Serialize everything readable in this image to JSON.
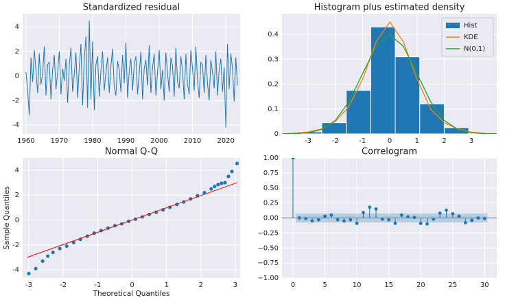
{
  "chart_data": [
    {
      "type": "line",
      "title": "Standardized residual",
      "x": [
        1960,
        1960.5,
        1961,
        1961.5,
        1962,
        1962.5,
        1963,
        1963.5,
        1964,
        1964.5,
        1965,
        1965.5,
        1966,
        1966.5,
        1967,
        1967.5,
        1968,
        1968.5,
        1969,
        1969.5,
        1970,
        1970.5,
        1971,
        1971.5,
        1972,
        1972.5,
        1973,
        1973.5,
        1974,
        1974.5,
        1975,
        1975.5,
        1976,
        1976.5,
        1977,
        1977.5,
        1978,
        1978.5,
        1979,
        1979.5,
        1980,
        1980.5,
        1981,
        1981.5,
        1982,
        1982.5,
        1983,
        1983.5,
        1984,
        1984.5,
        1985,
        1985.5,
        1986,
        1986.5,
        1987,
        1987.5,
        1988,
        1988.5,
        1989,
        1989.5,
        1990,
        1990.5,
        1991,
        1991.5,
        1992,
        1992.5,
        1993,
        1993.5,
        1994,
        1994.5,
        1995,
        1995.5,
        1996,
        1996.5,
        1997,
        1997.5,
        1998,
        1998.5,
        1999,
        1999.5,
        2000,
        2000.5,
        2001,
        2001.5,
        2002,
        2002.5,
        2003,
        2003.5,
        2004,
        2004.5,
        2005,
        2005.5,
        2006,
        2006.5,
        2007,
        2007.5,
        2008,
        2008.5,
        2009,
        2009.5,
        2010,
        2010.5,
        2011,
        2011.5,
        2012,
        2012.5,
        2013,
        2013.5,
        2014,
        2014.5,
        2015,
        2015.5,
        2016,
        2016.5,
        2017,
        2017.5,
        2018,
        2018.5,
        2019,
        2019.5,
        2020,
        2020.5,
        2021,
        2021.5,
        2022,
        2022.5,
        2023,
        2023.5
      ],
      "series": [
        {
          "color": "#1f77b4",
          "values": [
            0.3,
            -1.2,
            -3.2,
            1.5,
            -0.5,
            2.1,
            0.4,
            -1.4,
            1.8,
            -0.7,
            0.2,
            2.4,
            -1.6,
            0.9,
            1.1,
            -1.9,
            0.5,
            1.7,
            -1.1,
            0.3,
            2.0,
            -1.5,
            0.6,
            -0.4,
            1.4,
            -2.2,
            0.8,
            2.3,
            -1.3,
            0.1,
            1.9,
            -1.8,
            0.7,
            2.6,
            -2.4,
            1.3,
            3.2,
            -2.6,
            4.5,
            -1.9,
            2.8,
            -2.8,
            0.9,
            1.6,
            -1.7,
            0.4,
            2.0,
            -1.2,
            0.3,
            1.5,
            -1.4,
            0.8,
            2.2,
            -0.9,
            -1.6,
            1.2,
            0.5,
            -1.3,
            1.7,
            -0.6,
            2.7,
            -1.8,
            0.4,
            1.4,
            -1.2,
            0.9,
            1.6,
            -1.5,
            0.2,
            2.0,
            -1.9,
            0.6,
            1.3,
            -0.8,
            2.5,
            -1.4,
            0.7,
            1.8,
            -1.6,
            0.3,
            2.1,
            -1.1,
            0.5,
            -2.0,
            1.9,
            0.2,
            -1.3,
            1.5,
            0.8,
            -1.7,
            2.3,
            -0.5,
            -1.0,
            1.6,
            0.4,
            -1.9,
            1.8,
            -0.7,
            -1.5,
            2.1,
            0.6,
            -1.2,
            2.4,
            -0.3,
            -1.8,
            1.1,
            0.9,
            -1.4,
            1.7,
            -0.6,
            -2.0,
            1.3,
            0.3,
            -1.0,
            2.0,
            -1.6,
            0.5,
            1.4,
            -1.3,
            0.7,
            -4.2,
            2.6,
            -1.1,
            1.8,
            0.6,
            -2.1,
            1.5,
            -0.8
          ]
        }
      ],
      "xlim": [
        1959,
        2024.3
      ],
      "xticks": [
        1960,
        1970,
        1980,
        1990,
        2000,
        2010,
        2020
      ],
      "ylim": [
        -4.72,
        5.06
      ],
      "yticks": [
        -4,
        -2,
        0,
        2,
        4
      ],
      "grid": true
    },
    {
      "type": "histogram",
      "title": "Histogram plus estimated density",
      "name": "Hist",
      "color": "#1f77b4",
      "bins": [
        -4.3,
        -3.4,
        -2.5,
        -1.6,
        -0.7,
        0.2,
        1.1,
        2.0,
        2.9,
        3.8,
        4.7
      ],
      "counts": [
        0.002,
        0.008,
        0.045,
        0.175,
        0.43,
        0.31,
        0.12,
        0.025,
        0.003,
        0.002
      ],
      "series": [
        {
          "name": "KDE",
          "color": "#ff7f0e",
          "x": [
            -4,
            -3.5,
            -3,
            -2.5,
            -2,
            -1.5,
            -1,
            -0.5,
            0,
            0.5,
            1,
            1.5,
            2,
            2.5,
            3,
            3.5,
            4
          ],
          "values": [
            0.0,
            0.003,
            0.008,
            0.02,
            0.05,
            0.11,
            0.22,
            0.37,
            0.45,
            0.37,
            0.22,
            0.1,
            0.045,
            0.02,
            0.007,
            0.002,
            0.001
          ]
        },
        {
          "name": "N(0,1)",
          "color": "#2ca02c",
          "x": [
            -4,
            -3.5,
            -3,
            -2.5,
            -2,
            -1.5,
            -1,
            -0.5,
            0,
            0.5,
            1,
            1.5,
            2,
            2.5,
            3,
            3.5,
            4
          ],
          "values": [
            0.0001,
            0.0009,
            0.0044,
            0.0175,
            0.054,
            0.1295,
            0.242,
            0.352,
            0.399,
            0.352,
            0.242,
            0.1295,
            0.054,
            0.0175,
            0.0044,
            0.0009,
            0.0001
          ]
        }
      ],
      "xlim": [
        -3.96,
        3.93
      ],
      "xticks": [
        -3,
        -2,
        -1,
        0,
        1,
        2,
        3
      ],
      "ylim": [
        0,
        0.483
      ],
      "yticks": [
        0.0,
        0.1,
        0.2,
        0.3,
        0.4
      ],
      "grid": true,
      "legend": "upper right"
    },
    {
      "type": "scatter",
      "title": "Normal Q-Q",
      "xlabel": "Theoretical Quantiles",
      "ylabel": "Sample Quantiles",
      "color": "#1f77b4",
      "x": [
        -3.0,
        -2.8,
        -2.6,
        -2.45,
        -2.3,
        -2.1,
        -1.9,
        -1.7,
        -1.5,
        -1.3,
        -1.1,
        -0.9,
        -0.7,
        -0.5,
        -0.3,
        -0.1,
        0.1,
        0.3,
        0.5,
        0.7,
        0.9,
        1.1,
        1.3,
        1.5,
        1.7,
        1.9,
        2.1,
        2.3,
        2.4,
        2.5,
        2.6,
        2.7,
        2.8,
        2.9,
        3.05
      ],
      "values": [
        -4.3,
        -3.9,
        -3.3,
        -2.9,
        -2.6,
        -2.3,
        -2.1,
        -1.8,
        -1.55,
        -1.3,
        -1.05,
        -0.85,
        -0.65,
        -0.45,
        -0.3,
        -0.1,
        0.07,
        0.25,
        0.45,
        0.62,
        0.82,
        1.02,
        1.25,
        1.45,
        1.7,
        1.95,
        2.2,
        2.5,
        2.7,
        2.85,
        2.95,
        3.0,
        3.5,
        3.9,
        4.55
      ],
      "line": {
        "color": "#ff0000",
        "x": [
          -3.05,
          3.05
        ],
        "values": [
          -3.0,
          3.0
        ]
      },
      "xlim": [
        -3.18,
        3.14
      ],
      "xticks": [
        -3,
        -2,
        -1,
        0,
        1,
        2,
        3
      ],
      "ylim": [
        -4.66,
        4.99
      ],
      "yticks": [
        -4,
        -2,
        0,
        2,
        4
      ],
      "grid": true
    },
    {
      "type": "stem",
      "title": "Correlogram",
      "color": "#1f77b4",
      "x": [
        0,
        1,
        2,
        3,
        4,
        5,
        6,
        7,
        8,
        9,
        10,
        11,
        12,
        13,
        14,
        15,
        16,
        17,
        18,
        19,
        20,
        21,
        22,
        23,
        24,
        25,
        26,
        27,
        28,
        29,
        30
      ],
      "values": [
        1.0,
        0.0,
        -0.01,
        -0.05,
        -0.03,
        0.03,
        0.05,
        -0.03,
        -0.05,
        -0.03,
        -0.09,
        0.09,
        0.18,
        0.15,
        -0.02,
        -0.03,
        -0.09,
        0.05,
        0.02,
        0.01,
        -0.09,
        -0.1,
        -0.02,
        0.08,
        0.13,
        0.07,
        0.03,
        -0.08,
        -0.04,
        0.0,
        -0.01
      ],
      "band": [
        -0.075,
        0.075
      ],
      "xlim": [
        -1.72,
        31.9
      ],
      "xticks": [
        0,
        5,
        10,
        15,
        20,
        25,
        30
      ],
      "ylim": [
        -1.0,
        1.0
      ],
      "yticks": [
        {
          "value": -1.0,
          "label": "−1.00"
        },
        {
          "value": -0.75,
          "label": "−0.75"
        },
        {
          "value": -0.5,
          "label": "−0.50"
        },
        {
          "value": -0.25,
          "label": "−0.25"
        },
        {
          "value": 0.0,
          "label": "0.00"
        },
        {
          "value": 0.25,
          "label": "0.25"
        },
        {
          "value": 0.5,
          "label": "0.50"
        },
        {
          "value": 0.75,
          "label": "0.75"
        },
        {
          "value": 1.0,
          "label": "1.00"
        }
      ],
      "grid": true
    }
  ]
}
